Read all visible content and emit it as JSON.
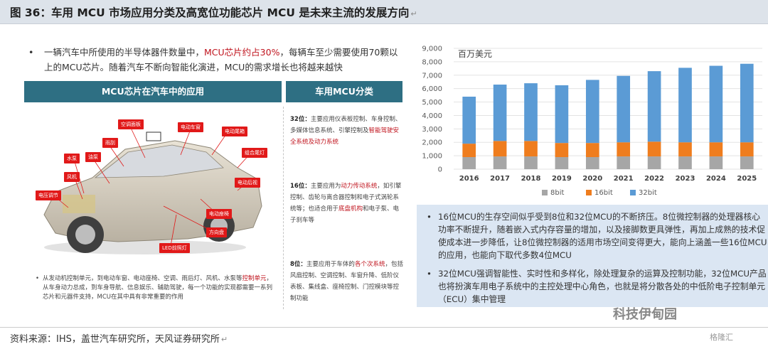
{
  "title": "图 36：车用 MCU 市场应用分类及高宽位功能芯片 MCU 是未来主流的发展方向",
  "return_mark": "↵",
  "bullet": {
    "dot": "•",
    "pre": "一辆汽车中所使用的半导体器件数量中，",
    "highlight": "MCU芯片约占30%",
    "post": "，每辆车至少需要使用70颗以上的MCU芯片。随着汽车不断向智能化演进，MCU的需求增长也将越来越快"
  },
  "headers": {
    "left": "MCU芯片在汽车中的应用",
    "right": "车用MCU分类"
  },
  "car_labels": {
    "ac_panel": "空调面板",
    "wiper": "雨刮",
    "fuel_pump": "油泵",
    "water_pump": "水泵",
    "fan": "风机",
    "ac_adjust": "电压调节",
    "power_window": "电动车窗",
    "power_wing": "电动尾箱",
    "combo_lamp": "组合尾灯",
    "power_mirror": "电动后视",
    "power_seat": "电动座椅",
    "steering": "方向盘",
    "led_headlight": "LED前照灯"
  },
  "classes": {
    "c32": {
      "tag": "32位：",
      "pre": "主要应用仪表板控制、车身控制、多媒体信息系统、引擎控制及",
      "highlight": "智能驾驶安全系统及动力系统"
    },
    "c16": {
      "tag": "16位：",
      "pre": "主要应用为",
      "highlight1": "动力传动系统",
      "mid": "，如引擎控制、齿轮与离合器控制和电子式涡轮系统等；也适合用于",
      "highlight2": "底盘机构",
      "post": "和电子泵、电子刹车等"
    },
    "c8": {
      "tag": "8位：",
      "pre": "主要应用于车体的",
      "highlight": "各个次系统",
      "post": "，包括风扇控制、空调控制、车窗升降、低阶仪表板、集线盒、座椅控制、门控模块等控制功能"
    }
  },
  "bottom_left": {
    "dot": "•",
    "pre": "从发动机控制单元，到电动车窗、电动座椅、空调、雨后灯、风机、水泵等",
    "highlight": "控制单元",
    "post": "，从车身动力总成，到车身导航、信息娱乐、辅助驾驶，每一个功能的实现都需要一系列芯片和元器件支持，MCU在其中具有非常重要的作用"
  },
  "chart_data": {
    "type": "bar",
    "stacked": true,
    "unit_label": "百万美元",
    "categories": [
      "2016",
      "2017",
      "2018",
      "2019",
      "2020",
      "2021",
      "2022",
      "2023",
      "2024",
      "2025"
    ],
    "ylim": [
      0,
      9000
    ],
    "yticks": [
      "0",
      "1,000",
      "2,000",
      "3,000",
      "4,000",
      "5,000",
      "6,000",
      "7,000",
      "8,000",
      "9,000"
    ],
    "series": [
      {
        "name": "8bit",
        "color": "#a6a6a6",
        "values": [
          900,
          950,
          950,
          900,
          900,
          950,
          950,
          950,
          950,
          950
        ]
      },
      {
        "name": "16bit",
        "color": "#ef7d1e",
        "values": [
          1000,
          1150,
          1150,
          1050,
          1050,
          1050,
          1100,
          1050,
          1050,
          1050
        ]
      },
      {
        "name": "32bit",
        "color": "#5b9bd5",
        "values": [
          3500,
          4200,
          4300,
          4300,
          4700,
          4950,
          5250,
          5550,
          5700,
          5850
        ]
      }
    ],
    "legend_position": "bottom",
    "grid": true
  },
  "notes": {
    "n1": {
      "dot": "•",
      "text": "16位MCU的生存空间似乎受到8位和32位MCU的不断挤压。8位微控制器的处理器核心功率不断提升，随着嵌入式内存容量的增加，以及接脚数更具弹性，再加上成熟的技术促使成本进一步降低，让8位微控制器的适用市场空间变得更大，能向上涵盖一些16位MCU的应用，也能向下取代多数4位MCU"
    },
    "n2": {
      "dot": "•",
      "text": "32位MCU强调智能性、实时性和多样化，除处理复杂的运算及控制功能，32位MCU产品也将扮演车用电子系统中的主控处理中心角色，也就是将分散各处的中低阶电子控制单元（ECU）集中管理"
    }
  },
  "wechat": "科技伊甸园",
  "source": "资料来源：IHS，盖世汽车研究所，天风证券研究所",
  "gelonghui": "格隆汇"
}
